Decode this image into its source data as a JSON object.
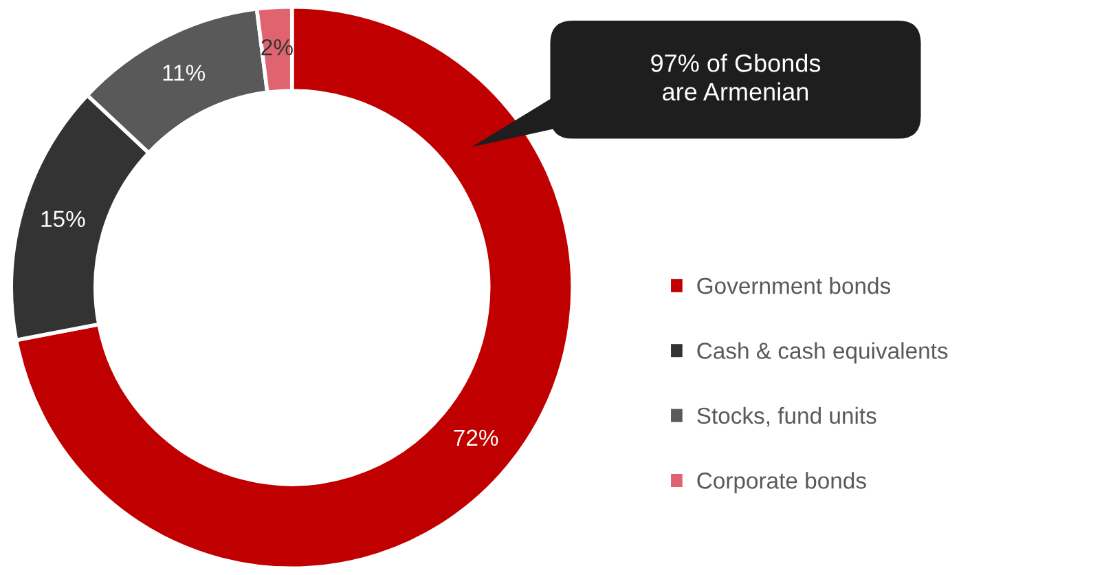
{
  "chart_data": {
    "type": "donut",
    "categories": [
      "Government bonds",
      "Cash & cash equivalents",
      "Stocks, fund units",
      "Corporate bonds"
    ],
    "values": [
      72,
      15,
      11,
      2
    ],
    "colors": [
      "#c00000",
      "#333333",
      "#595959",
      "#e06470"
    ],
    "value_labels": [
      "72%",
      "15%",
      "11%",
      "2%"
    ],
    "annotations": [
      "97% of Gbonds\nare Armenian"
    ],
    "legend": "right"
  }
}
